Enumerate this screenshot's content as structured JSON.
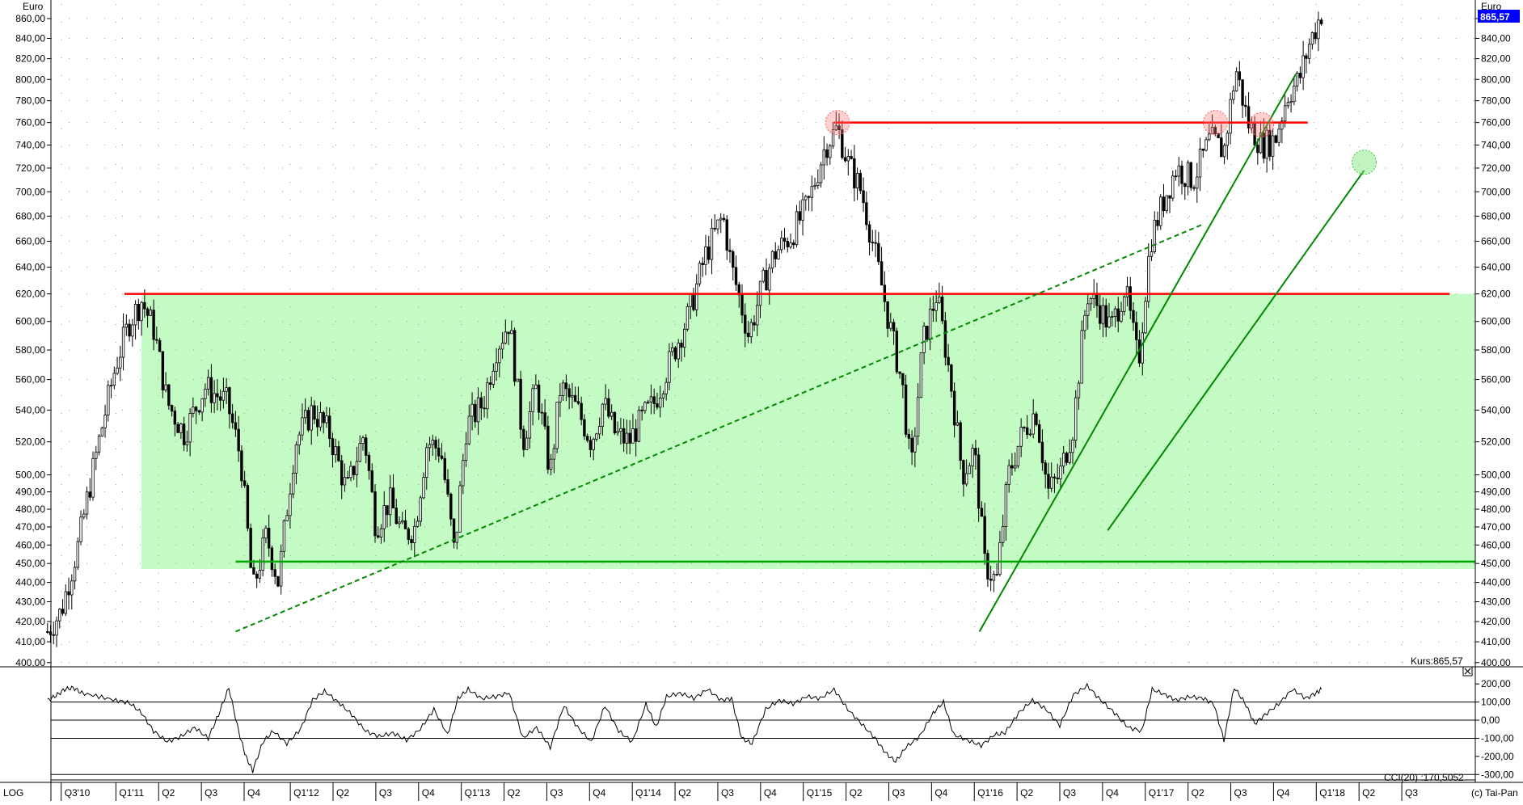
{
  "chart_data": {
    "type": "candlestick",
    "price_panel": {
      "unit_left": "Euro",
      "unit_right": "Euro",
      "scale": "log",
      "ylim": [
        398,
        875
      ],
      "y_ticks": [
        400,
        410,
        420,
        430,
        440,
        450,
        460,
        470,
        480,
        490,
        500,
        520,
        540,
        560,
        580,
        600,
        620,
        640,
        660,
        680,
        700,
        720,
        740,
        760,
        780,
        800,
        820,
        840,
        860
      ],
      "y_tick_labels": [
        "400,00",
        "410,00",
        "420,00",
        "430,00",
        "440,00",
        "450,00",
        "460,00",
        "470,00",
        "480,00",
        "490,00",
        "500,00",
        "520,00",
        "540,00",
        "560,00",
        "580,00",
        "600,00",
        "620,00",
        "640,00",
        "660,00",
        "680,00",
        "700,00",
        "720,00",
        "740,00",
        "760,00",
        "780,00",
        "800,00",
        "820,00",
        "840,00",
        "860,00"
      ],
      "last_price_badge": "865,57",
      "kurs_label": "Kurs:865,57",
      "support_zone": {
        "x_start": 2011.05,
        "x_end": 2018.85,
        "low": 447,
        "high": 620,
        "color": "#c4fac4"
      },
      "horizontal_lines": [
        {
          "x_start": 2010.95,
          "x_end": 2018.7,
          "y": 620,
          "color": "#ff0000"
        },
        {
          "x_start": 2011.6,
          "x_end": 2018.85,
          "y": 451,
          "color": "#00aa00"
        },
        {
          "x_start": 2015.1,
          "x_end": 2017.87,
          "y": 760,
          "color": "#ff0000"
        }
      ],
      "trend_lines": [
        {
          "from": [
            2011.6,
            415
          ],
          "to": [
            2017.25,
            673
          ],
          "style": "dashed",
          "color": "#008800"
        },
        {
          "from": [
            2015.95,
            415
          ],
          "to": [
            2017.8,
            805
          ],
          "style": "solid",
          "color": "#008800"
        },
        {
          "from": [
            2016.7,
            468
          ],
          "to": [
            2018.2,
            718
          ],
          "style": "solid",
          "color": "#008800"
        }
      ],
      "highlight_circles": [
        {
          "x": 2015.12,
          "y": 760,
          "color": "red"
        },
        {
          "x": 2017.33,
          "y": 760,
          "color": "red"
        },
        {
          "x": 2017.6,
          "y": 758,
          "color": "red"
        },
        {
          "x": 2018.2,
          "y": 725,
          "color": "green"
        }
      ],
      "price_path": [
        [
          2010.5,
          415
        ],
        [
          2010.58,
          425
        ],
        [
          2010.68,
          460
        ],
        [
          2010.8,
          520
        ],
        [
          2010.9,
          570
        ],
        [
          2010.98,
          600
        ],
        [
          2011.05,
          615
        ],
        [
          2011.12,
          595
        ],
        [
          2011.2,
          545
        ],
        [
          2011.3,
          525
        ],
        [
          2011.42,
          555
        ],
        [
          2011.55,
          545
        ],
        [
          2011.63,
          510
        ],
        [
          2011.7,
          435
        ],
        [
          2011.78,
          465
        ],
        [
          2011.85,
          440
        ],
        [
          2011.95,
          520
        ],
        [
          2012.05,
          540
        ],
        [
          2012.15,
          525
        ],
        [
          2012.25,
          490
        ],
        [
          2012.35,
          525
        ],
        [
          2012.42,
          470
        ],
        [
          2012.5,
          485
        ],
        [
          2012.58,
          465
        ],
        [
          2012.65,
          470
        ],
        [
          2012.72,
          520
        ],
        [
          2012.8,
          515
        ],
        [
          2012.88,
          455
        ],
        [
          2012.95,
          530
        ],
        [
          2013.05,
          545
        ],
        [
          2013.12,
          580
        ],
        [
          2013.2,
          600
        ],
        [
          2013.28,
          520
        ],
        [
          2013.36,
          555
        ],
        [
          2013.44,
          500
        ],
        [
          2013.5,
          555
        ],
        [
          2013.6,
          540
        ],
        [
          2013.68,
          520
        ],
        [
          2013.75,
          545
        ],
        [
          2013.82,
          525
        ],
        [
          2013.9,
          520
        ],
        [
          2013.98,
          535
        ],
        [
          2014.05,
          545
        ],
        [
          2014.15,
          575
        ],
        [
          2014.25,
          605
        ],
        [
          2014.35,
          650
        ],
        [
          2014.45,
          680
        ],
        [
          2014.5,
          640
        ],
        [
          2014.6,
          590
        ],
        [
          2014.68,
          625
        ],
        [
          2014.75,
          650
        ],
        [
          2014.85,
          665
        ],
        [
          2014.95,
          690
        ],
        [
          2015.05,
          740
        ],
        [
          2015.12,
          755
        ],
        [
          2015.18,
          725
        ],
        [
          2015.26,
          700
        ],
        [
          2015.34,
          650
        ],
        [
          2015.42,
          600
        ],
        [
          2015.5,
          555
        ],
        [
          2015.55,
          500
        ],
        [
          2015.62,
          585
        ],
        [
          2015.7,
          620
        ],
        [
          2015.78,
          560
        ],
        [
          2015.85,
          500
        ],
        [
          2015.92,
          515
        ],
        [
          2015.98,
          450
        ],
        [
          2016.05,
          440
        ],
        [
          2016.12,
          500
        ],
        [
          2016.2,
          525
        ],
        [
          2016.28,
          540
        ],
        [
          2016.35,
          490
        ],
        [
          2016.42,
          500
        ],
        [
          2016.5,
          530
        ],
        [
          2016.58,
          620
        ],
        [
          2016.65,
          610
        ],
        [
          2016.72,
          595
        ],
        [
          2016.8,
          625
        ],
        [
          2016.88,
          570
        ],
        [
          2016.95,
          660
        ],
        [
          2017.02,
          690
        ],
        [
          2017.1,
          720
        ],
        [
          2017.2,
          710
        ],
        [
          2017.3,
          745
        ],
        [
          2017.38,
          735
        ],
        [
          2017.45,
          810
        ],
        [
          2017.52,
          760
        ],
        [
          2017.6,
          740
        ],
        [
          2017.68,
          745
        ],
        [
          2017.75,
          785
        ],
        [
          2017.82,
          800
        ],
        [
          2017.88,
          835
        ],
        [
          2017.95,
          865.57
        ]
      ]
    },
    "cci_panel": {
      "title": "CCI(20) :170,5052",
      "ylim": [
        -330,
        250
      ],
      "y_ticks": [
        200,
        100,
        0,
        -100,
        -200,
        -300
      ],
      "y_tick_labels": [
        "200,00",
        "100,00",
        "0,00",
        "-100,00",
        "-200,00",
        "-300,00"
      ],
      "reference_lines": [
        100,
        0,
        -100
      ],
      "series": [
        [
          2010.5,
          110
        ],
        [
          2010.55,
          135
        ],
        [
          2010.6,
          170
        ],
        [
          2010.65,
          180
        ],
        [
          2010.7,
          150
        ],
        [
          2010.8,
          130
        ],
        [
          2010.9,
          110
        ],
        [
          2010.98,
          95
        ],
        [
          2011.05,
          40
        ],
        [
          2011.12,
          -60
        ],
        [
          2011.2,
          -120
        ],
        [
          2011.28,
          -90
        ],
        [
          2011.36,
          -40
        ],
        [
          2011.44,
          -100
        ],
        [
          2011.5,
          30
        ],
        [
          2011.56,
          180
        ],
        [
          2011.62,
          -70
        ],
        [
          2011.66,
          -200
        ],
        [
          2011.7,
          -280
        ],
        [
          2011.76,
          -120
        ],
        [
          2011.82,
          -60
        ],
        [
          2011.9,
          -130
        ],
        [
          2011.98,
          -50
        ],
        [
          2012.05,
          110
        ],
        [
          2012.12,
          160
        ],
        [
          2012.2,
          100
        ],
        [
          2012.28,
          30
        ],
        [
          2012.36,
          -60
        ],
        [
          2012.44,
          -90
        ],
        [
          2012.52,
          -70
        ],
        [
          2012.6,
          -110
        ],
        [
          2012.68,
          -50
        ],
        [
          2012.76,
          60
        ],
        [
          2012.84,
          -80
        ],
        [
          2012.9,
          120
        ],
        [
          2012.96,
          170
        ],
        [
          2013.04,
          120
        ],
        [
          2013.12,
          130
        ],
        [
          2013.2,
          150
        ],
        [
          2013.28,
          -100
        ],
        [
          2013.36,
          -40
        ],
        [
          2013.44,
          -150
        ],
        [
          2013.52,
          80
        ],
        [
          2013.6,
          -40
        ],
        [
          2013.68,
          -120
        ],
        [
          2013.76,
          80
        ],
        [
          2013.84,
          -60
        ],
        [
          2013.92,
          -120
        ],
        [
          2014.0,
          90
        ],
        [
          2014.06,
          -40
        ],
        [
          2014.12,
          130
        ],
        [
          2014.2,
          150
        ],
        [
          2014.28,
          120
        ],
        [
          2014.36,
          170
        ],
        [
          2014.44,
          110
        ],
        [
          2014.5,
          120
        ],
        [
          2014.56,
          -100
        ],
        [
          2014.62,
          -130
        ],
        [
          2014.7,
          60
        ],
        [
          2014.78,
          110
        ],
        [
          2014.86,
          90
        ],
        [
          2014.94,
          130
        ],
        [
          2015.02,
          120
        ],
        [
          2015.1,
          170
        ],
        [
          2015.18,
          60
        ],
        [
          2015.26,
          -20
        ],
        [
          2015.34,
          -100
        ],
        [
          2015.4,
          -180
        ],
        [
          2015.46,
          -230
        ],
        [
          2015.52,
          -150
        ],
        [
          2015.6,
          -90
        ],
        [
          2015.68,
          40
        ],
        [
          2015.74,
          100
        ],
        [
          2015.8,
          -80
        ],
        [
          2015.88,
          -110
        ],
        [
          2015.96,
          -140
        ],
        [
          2016.04,
          -80
        ],
        [
          2016.1,
          -70
        ],
        [
          2016.18,
          40
        ],
        [
          2016.26,
          110
        ],
        [
          2016.34,
          60
        ],
        [
          2016.42,
          -30
        ],
        [
          2016.5,
          140
        ],
        [
          2016.58,
          190
        ],
        [
          2016.66,
          110
        ],
        [
          2016.74,
          40
        ],
        [
          2016.82,
          -40
        ],
        [
          2016.9,
          -60
        ],
        [
          2016.96,
          170
        ],
        [
          2017.04,
          140
        ],
        [
          2017.1,
          110
        ],
        [
          2017.18,
          130
        ],
        [
          2017.26,
          120
        ],
        [
          2017.32,
          90
        ],
        [
          2017.38,
          -110
        ],
        [
          2017.44,
          180
        ],
        [
          2017.5,
          100
        ],
        [
          2017.56,
          -20
        ],
        [
          2017.62,
          30
        ],
        [
          2017.7,
          90
        ],
        [
          2017.78,
          170
        ],
        [
          2017.86,
          120
        ],
        [
          2017.92,
          150
        ],
        [
          2017.95,
          170.5
        ]
      ]
    },
    "x_axis": {
      "mode_label": "LOG",
      "tick_labels": [
        {
          "x": 2010.58,
          "label": "Q3'10"
        },
        {
          "x": 2010.9,
          "label": "Q1'11"
        },
        {
          "x": 2011.15,
          "label": "Q2"
        },
        {
          "x": 2011.4,
          "label": "Q3"
        },
        {
          "x": 2011.65,
          "label": "Q4"
        },
        {
          "x": 2011.92,
          "label": "Q1'12"
        },
        {
          "x": 2012.17,
          "label": "Q2"
        },
        {
          "x": 2012.42,
          "label": "Q3"
        },
        {
          "x": 2012.67,
          "label": "Q4"
        },
        {
          "x": 2012.92,
          "label": "Q1'13"
        },
        {
          "x": 2013.17,
          "label": "Q2"
        },
        {
          "x": 2013.42,
          "label": "Q3"
        },
        {
          "x": 2013.67,
          "label": "Q4"
        },
        {
          "x": 2013.92,
          "label": "Q1'14"
        },
        {
          "x": 2014.17,
          "label": "Q2"
        },
        {
          "x": 2014.42,
          "label": "Q3"
        },
        {
          "x": 2014.67,
          "label": "Q4"
        },
        {
          "x": 2014.92,
          "label": "Q1'15"
        },
        {
          "x": 2015.17,
          "label": "Q2"
        },
        {
          "x": 2015.42,
          "label": "Q3"
        },
        {
          "x": 2015.67,
          "label": "Q4"
        },
        {
          "x": 2015.92,
          "label": "Q1'16"
        },
        {
          "x": 2016.17,
          "label": "Q2"
        },
        {
          "x": 2016.42,
          "label": "Q3"
        },
        {
          "x": 2016.67,
          "label": "Q4"
        },
        {
          "x": 2016.92,
          "label": "Q1'17"
        },
        {
          "x": 2017.17,
          "label": "Q2"
        },
        {
          "x": 2017.42,
          "label": "Q3"
        },
        {
          "x": 2017.67,
          "label": "Q4"
        },
        {
          "x": 2017.92,
          "label": "Q1'18"
        },
        {
          "x": 2018.17,
          "label": "Q2"
        },
        {
          "x": 2018.42,
          "label": "Q3"
        }
      ],
      "x_range": [
        2010.52,
        2018.85
      ]
    },
    "copyright": "(c) Tai-Pan"
  }
}
